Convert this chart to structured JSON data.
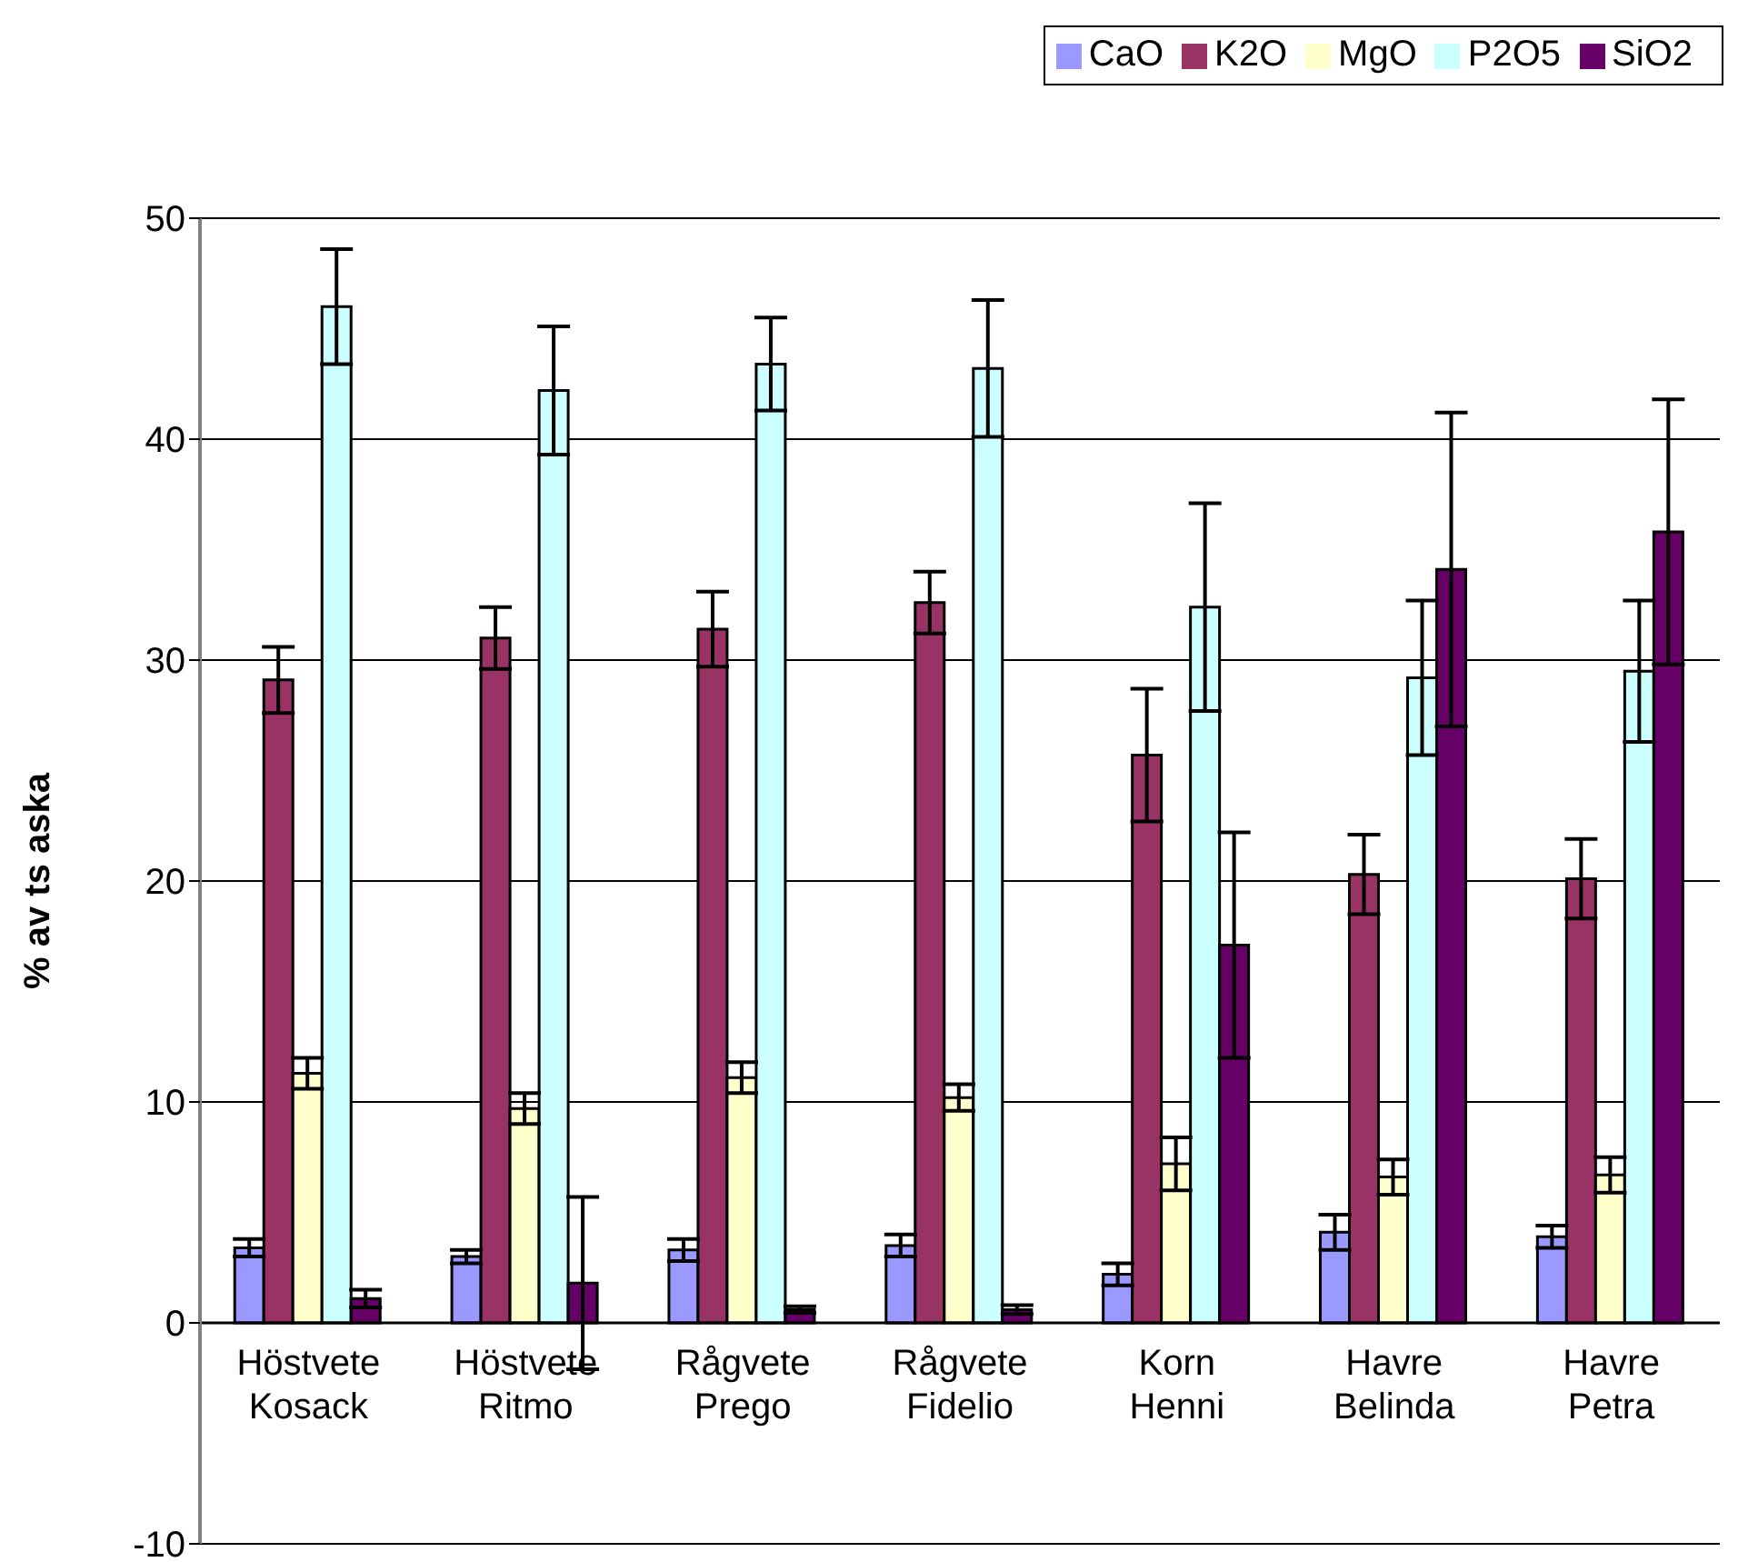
{
  "chart_data": {
    "type": "bar",
    "ylabel": "% av ts aska",
    "categories": [
      "Höstvete Kosack",
      "Höstvete Ritmo",
      "Rågvete Prego",
      "Rågvete Fidelio",
      "Korn Henni",
      "Havre Belinda",
      "Havre Petra"
    ],
    "series": [
      {
        "name": "CaO",
        "color": "#9999ff",
        "values": [
          3.4,
          3.0,
          3.3,
          3.5,
          2.2,
          4.1,
          3.9
        ],
        "errors": [
          0.4,
          0.3,
          0.5,
          0.5,
          0.5,
          0.8,
          0.5
        ]
      },
      {
        "name": "K2O",
        "color": "#993366",
        "values": [
          29.1,
          31.0,
          31.4,
          32.6,
          25.7,
          20.3,
          20.1
        ],
        "errors": [
          1.5,
          1.4,
          1.7,
          1.4,
          3.0,
          1.8,
          1.8
        ]
      },
      {
        "name": "MgO",
        "color": "#ffffcc",
        "values": [
          11.3,
          9.7,
          11.1,
          10.2,
          7.2,
          6.6,
          6.7
        ],
        "errors": [
          0.7,
          0.7,
          0.7,
          0.6,
          1.2,
          0.8,
          0.8
        ]
      },
      {
        "name": "P2O5",
        "color": "#ccffff",
        "values": [
          46.0,
          42.2,
          43.4,
          43.2,
          32.4,
          29.2,
          29.5
        ],
        "errors": [
          2.6,
          2.9,
          2.1,
          3.1,
          4.7,
          3.5,
          3.2
        ]
      },
      {
        "name": "SiO2",
        "color": "#660066",
        "values": [
          1.1,
          1.8,
          0.6,
          0.6,
          17.1,
          34.1,
          35.8
        ],
        "errors": [
          0.4,
          3.9,
          0.15,
          0.2,
          5.1,
          7.1,
          6.0
        ]
      }
    ],
    "ylim": [
      -10,
      50
    ],
    "yticks": [
      -10,
      0,
      10,
      20,
      30,
      40,
      50
    ],
    "grid": "y",
    "legend": "top right"
  }
}
